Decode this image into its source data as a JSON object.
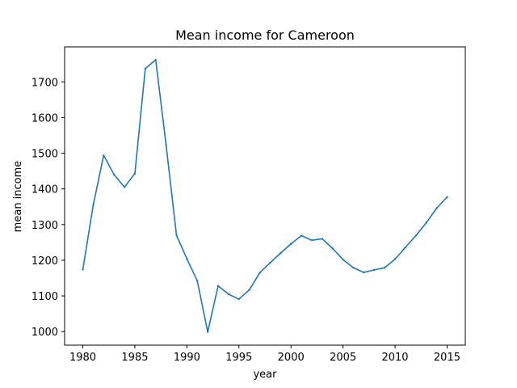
{
  "chart_data": {
    "type": "line",
    "title": "Mean income for Cameroon",
    "xlabel": "year",
    "ylabel": "mean income",
    "xlim": [
      1978.25,
      2016.75
    ],
    "ylim": [
      962,
      1798
    ],
    "x_ticks": [
      1980,
      1985,
      1990,
      1995,
      2000,
      2005,
      2010,
      2015
    ],
    "y_ticks": [
      1000,
      1100,
      1200,
      1300,
      1400,
      1500,
      1600,
      1700
    ],
    "grid": false,
    "line_color": "#1f77b4",
    "series": [
      {
        "x": [
          1980,
          1981,
          1982,
          1983,
          1984,
          1985,
          1986,
          1987,
          1988,
          1989,
          1990,
          1991,
          1992,
          1993,
          1994,
          1995,
          1996,
          1997,
          1998,
          1999,
          2000,
          2001,
          2002,
          2003,
          2004,
          2005,
          2006,
          2007,
          2008,
          2009,
          2010,
          2011,
          2012,
          2013,
          2014,
          2015
        ],
        "y": [
          1174,
          1355,
          1494,
          1440,
          1405,
          1443,
          1737,
          1762,
          1523,
          1270,
          1204,
          1142,
          999,
          1128,
          1105,
          1091,
          1117,
          1165,
          1193,
          1220,
          1246,
          1269,
          1256,
          1260,
          1233,
          1202,
          1179,
          1166,
          1173,
          1179,
          1203,
          1236,
          1269,
          1305,
          1346,
          1377
        ]
      }
    ]
  }
}
